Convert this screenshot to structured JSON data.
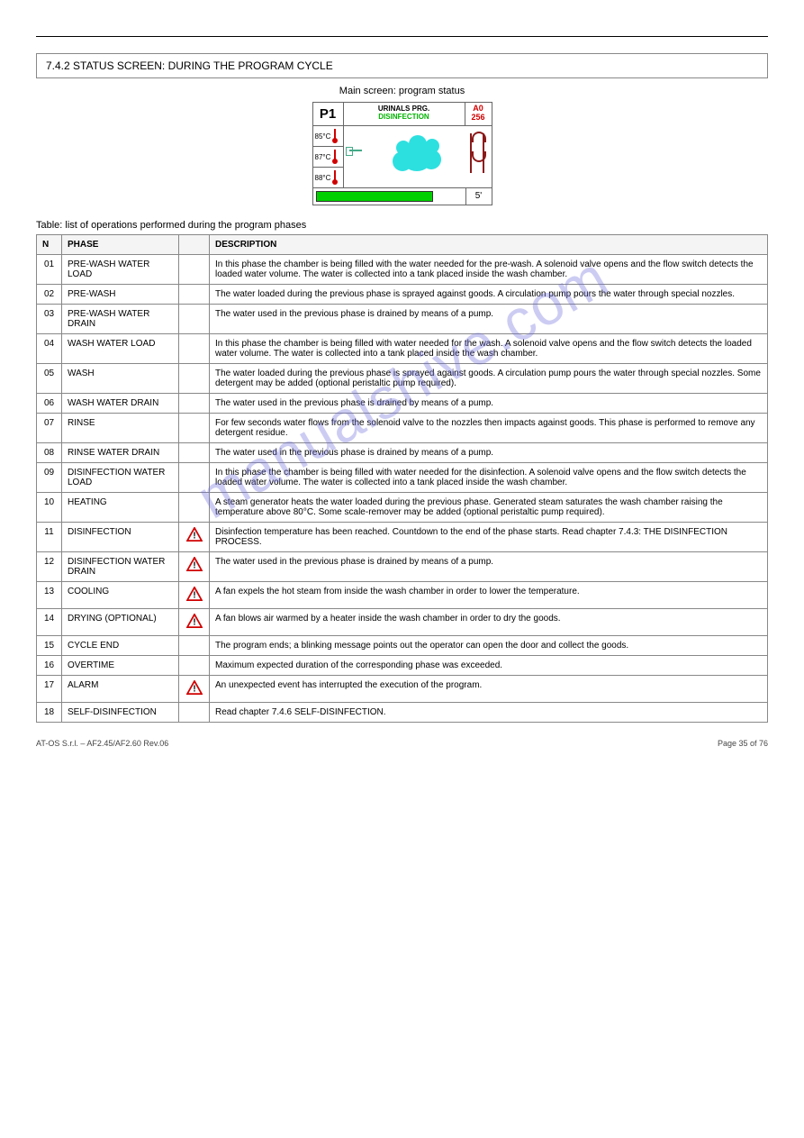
{
  "header": {
    "rule": true
  },
  "section": {
    "title": "7.4.2 STATUS SCREEN: DURING THE PROGRAM CYCLE",
    "caption": "Main screen: program status"
  },
  "screen": {
    "program_code": "P1",
    "program_title": "URINALS PRG.",
    "phase_label": "DISINFECTION",
    "a0_label": "A0",
    "a0_value": "256",
    "temps": [
      "85°C",
      "87°C",
      "88°C"
    ],
    "progress_time": "5'",
    "progress_pct": 80,
    "colors": {
      "phase_text": "#00b300",
      "a0_text": "#d00000",
      "thermo": "#d00000",
      "cloud": "#2de0e0",
      "coil": "#8b1a1a",
      "progress": "#00d000"
    }
  },
  "table": {
    "caption": "Table: list of operations performed during the program phases",
    "headers": [
      "N",
      "PHASE",
      "",
      "DESCRIPTION"
    ],
    "rows": [
      {
        "n": "01",
        "phase": "PRE-WASH WATER LOAD",
        "warn": false,
        "desc": "In this phase the chamber is being filled with the water needed for the pre-wash. A solenoid valve opens and the flow switch detects the loaded water volume. The water is collected into a tank placed inside the wash chamber."
      },
      {
        "n": "02",
        "phase": "PRE-WASH",
        "warn": false,
        "desc": "The water loaded during the previous phase is sprayed against goods. A circulation pump pours the water through special nozzles."
      },
      {
        "n": "03",
        "phase": "PRE-WASH WATER DRAIN",
        "warn": false,
        "desc": "The water used in the previous phase is drained by means of a pump."
      },
      {
        "n": "04",
        "phase": "WASH WATER LOAD",
        "warn": false,
        "desc": "In this phase the chamber is being filled with water needed for the wash. A solenoid valve opens and the flow switch detects the loaded water volume. The water is collected into a tank placed inside the wash chamber."
      },
      {
        "n": "05",
        "phase": "WASH",
        "warn": false,
        "desc": "The water loaded during the previous phase is sprayed against goods. A circulation pump pours the water through special nozzles. Some detergent may be added (optional peristaltic pump required)."
      },
      {
        "n": "06",
        "phase": "WASH WATER DRAIN",
        "warn": false,
        "desc": "The water used in the previous phase is drained by means of a pump."
      },
      {
        "n": "07",
        "phase": "RINSE",
        "warn": false,
        "desc": "For few seconds water flows from the solenoid valve to the nozzles then impacts against goods. This phase is performed to remove any detergent residue."
      },
      {
        "n": "08",
        "phase": "RINSE WATER DRAIN",
        "warn": false,
        "desc": "The water used in the previous phase is drained by means of a pump."
      },
      {
        "n": "09",
        "phase": "DISINFECTION WATER LOAD",
        "warn": false,
        "desc": "In this phase the chamber is being filled with water needed for the disinfection. A solenoid valve opens and the flow switch detects the loaded water volume. The water is collected into a tank placed inside the wash chamber."
      },
      {
        "n": "10",
        "phase": "HEATING",
        "warn": false,
        "desc": "A steam generator heats the water loaded during the previous phase. Generated steam saturates the wash chamber raising the temperature above 80°C. Some scale-remover may be added (optional peristaltic pump required)."
      },
      {
        "n": "11",
        "phase": "DISINFECTION",
        "warn": true,
        "desc": "Disinfection temperature has been reached. Countdown to the end of the phase starts. Read chapter 7.4.3: THE DISINFECTION PROCESS."
      },
      {
        "n": "12",
        "phase": "DISINFECTION WATER DRAIN",
        "warn": true,
        "desc": "The water used in the previous phase is drained by means of a pump."
      },
      {
        "n": "13",
        "phase": "COOLING",
        "warn": true,
        "desc": "A fan expels the hot steam from inside the wash chamber in order to lower the temperature."
      },
      {
        "n": "14",
        "phase": "DRYING (OPTIONAL)",
        "warn": true,
        "desc": "A fan blows air warmed by a heater inside the wash chamber in order to dry the goods."
      },
      {
        "n": "15",
        "phase": "CYCLE END",
        "warn": false,
        "desc": "The program ends; a blinking message points out the operator can open the door and collect the goods."
      },
      {
        "n": "16",
        "phase": "OVERTIME",
        "warn": false,
        "desc": "Maximum expected duration of the corresponding phase was exceeded."
      },
      {
        "n": "17",
        "phase": "ALARM",
        "warn": true,
        "desc": "An unexpected event has interrupted the execution of the program."
      },
      {
        "n": "18",
        "phase": "SELF-DISINFECTION",
        "warn": false,
        "desc": "Read chapter 7.4.6 SELF-DISINFECTION."
      }
    ]
  },
  "watermark": "manualshive.com",
  "footer": {
    "left": "AT-OS S.r.l. – AF2.45/AF2.60 Rev.06",
    "right": "Page 35 of 76"
  }
}
